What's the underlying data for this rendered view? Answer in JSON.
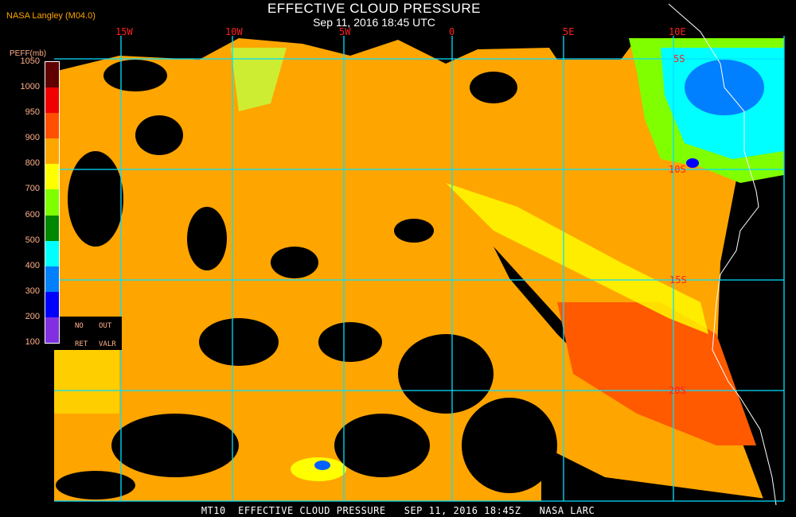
{
  "header": {
    "title": "EFFECTIVE CLOUD PRESSURE",
    "subtitle": "Sep 11, 2016 18:45 UTC",
    "credit": "NASA Langley (M04.0)"
  },
  "map": {
    "longitude_labels": [
      "15W",
      "10W",
      "5W",
      "0",
      "5E",
      "10E"
    ],
    "latitude_labels": [
      "5S",
      "10S",
      "15S",
      "20S"
    ],
    "gridline_color": "#00e0ff",
    "coastline_color": "#ffffff",
    "label_color": "#ff2020"
  },
  "legend": {
    "title": "PEFF(mb)",
    "tick_labels": [
      "1050",
      "1000",
      "950",
      "900",
      "800",
      "700",
      "600",
      "500",
      "400",
      "300",
      "200",
      "100"
    ],
    "colors": [
      "#600000",
      "#f00000",
      "#ff5000",
      "#ffa500",
      "#ffff00",
      "#80ff00",
      "#008800",
      "#00ffff",
      "#0080ff",
      "#0000ff",
      "#8030e0"
    ],
    "no_ret_label_1": "NO",
    "no_ret_label_2": "RET",
    "out_valr_label_1": "OUT",
    "out_valr_label_2": "VALR"
  },
  "footer": {
    "text": "MT10  EFFECTIVE CLOUD PRESSURE   SEP 11, 2016 18:45Z   NASA LARC"
  }
}
